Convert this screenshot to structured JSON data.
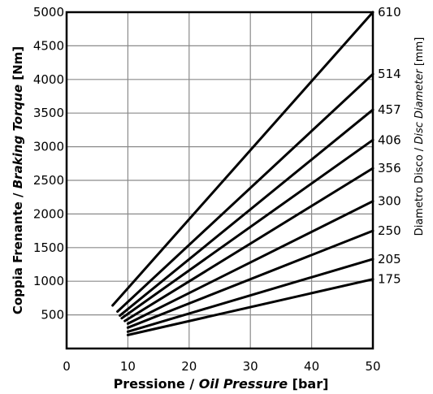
{
  "chart_data": {
    "type": "line",
    "xlabel": {
      "part1": "Pressione / ",
      "part2": "Oil Pressure",
      "part3": " [bar]"
    },
    "ylabel": {
      "part1": "Coppia Frenante / ",
      "part2": "Braking Torque",
      "part3": " [Nm]"
    },
    "right_label": {
      "part1": "Diametro Disco / ",
      "part2": "Disc Diameter",
      "part3": " [mm]"
    },
    "xlim": [
      0,
      50
    ],
    "ylim": [
      0,
      5000
    ],
    "x_ticks": [
      "0",
      "10",
      "20",
      "30",
      "40",
      "50"
    ],
    "y_ticks": [
      "500",
      "1000",
      "1500",
      "2000",
      "2500",
      "3000",
      "3500",
      "4000",
      "4500",
      "5000"
    ],
    "grid": true,
    "series": [
      {
        "name": "175",
        "x": [
          10,
          50
        ],
        "y": [
          200,
          1030
        ]
      },
      {
        "name": "205",
        "x": [
          10,
          50
        ],
        "y": [
          250,
          1330
        ]
      },
      {
        "name": "250",
        "x": [
          10,
          50
        ],
        "y": [
          310,
          1750
        ]
      },
      {
        "name": "300",
        "x": [
          10,
          50
        ],
        "y": [
          370,
          2190
        ]
      },
      {
        "name": "356",
        "x": [
          9.5,
          50
        ],
        "y": [
          410,
          2680
        ]
      },
      {
        "name": "406",
        "x": [
          9,
          50
        ],
        "y": [
          450,
          3100
        ]
      },
      {
        "name": "457",
        "x": [
          8.7,
          50
        ],
        "y": [
          490,
          3550
        ]
      },
      {
        "name": "514",
        "x": [
          8.3,
          50
        ],
        "y": [
          550,
          4080
        ]
      },
      {
        "name": "610",
        "x": [
          7.5,
          50
        ],
        "y": [
          640,
          5000
        ]
      }
    ]
  }
}
